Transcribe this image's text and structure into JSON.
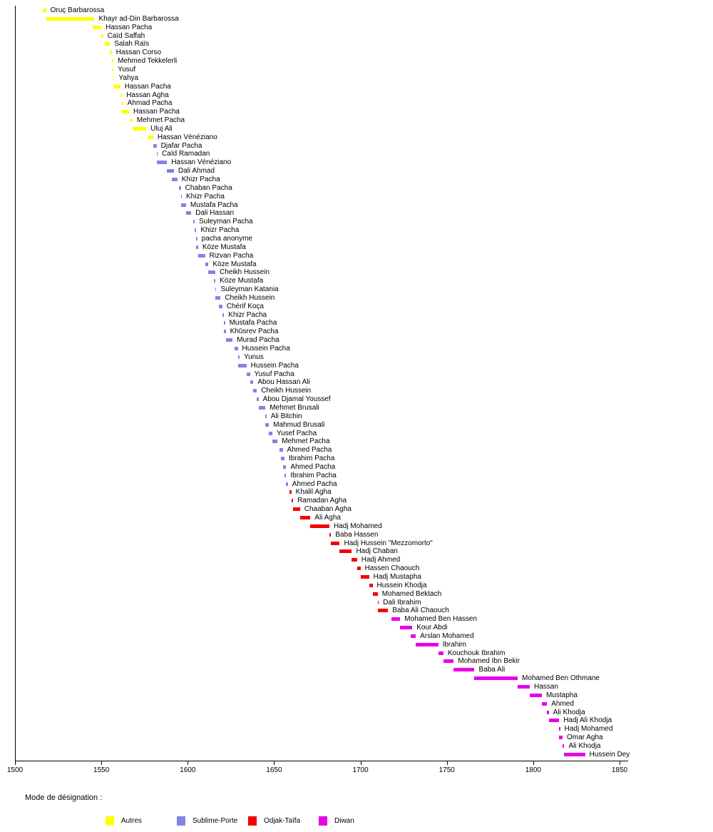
{
  "chart_data": {
    "type": "timeline",
    "title": "",
    "x_axis": {
      "min": 1500,
      "max": 1850,
      "tick_interval": 50,
      "ticks": [
        1500,
        1550,
        1600,
        1650,
        1700,
        1750,
        1800,
        1850
      ]
    },
    "grid": "off",
    "legend": {
      "title": "Mode de désignation :",
      "position": "bottom",
      "items": [
        {
          "label": "Autres",
          "color": "#ffff00"
        },
        {
          "label": "Sublime-Porte",
          "color": "#8383e3"
        },
        {
          "label": "Odjak-Taïfa",
          "color": "#f40000"
        },
        {
          "label": "Diwan",
          "color": "#e800e8"
        }
      ]
    },
    "rulers": [
      {
        "name": "Oruç Barbarossa",
        "start": 1516,
        "end": 1518,
        "group": "Autres"
      },
      {
        "name": "Khayr ad-Din Barbarossa",
        "start": 1518,
        "end": 1546,
        "group": "Autres"
      },
      {
        "name": "Hassan Pacha",
        "start": 1545,
        "end": 1550,
        "group": "Autres"
      },
      {
        "name": "Caïd Saffah",
        "start": 1550,
        "end": 1551,
        "group": "Autres"
      },
      {
        "name": "Salah Raïs",
        "start": 1552,
        "end": 1555,
        "group": "Autres"
      },
      {
        "name": "Hassan Corso",
        "start": 1555,
        "end": 1556,
        "group": "Autres"
      },
      {
        "name": "Mehmed Tekkelerli",
        "start": 1556,
        "end": 1557,
        "group": "Autres"
      },
      {
        "name": "Yusuf",
        "start": 1556,
        "end": 1557,
        "group": "Autres"
      },
      {
        "name": "Yahya",
        "start": 1557,
        "end": 1557,
        "group": "Autres"
      },
      {
        "name": "Hassan Pacha",
        "start": 1557,
        "end": 1561,
        "group": "Autres"
      },
      {
        "name": "Hassan Agha",
        "start": 1561,
        "end": 1562,
        "group": "Autres"
      },
      {
        "name": "Ahmad Pacha",
        "start": 1562,
        "end": 1562,
        "group": "Autres"
      },
      {
        "name": "Hassan Pacha",
        "start": 1562,
        "end": 1566,
        "group": "Autres"
      },
      {
        "name": "Mehmet Pacha",
        "start": 1567,
        "end": 1568,
        "group": "Autres"
      },
      {
        "name": "Uluj Ali",
        "start": 1568,
        "end": 1576,
        "group": "Autres"
      },
      {
        "name": "Hassan Vénéziano",
        "start": 1577,
        "end": 1580,
        "group": "Autres"
      },
      {
        "name": "Djafar Pacha",
        "start": 1580,
        "end": 1582,
        "group": "Sublime-Porte"
      },
      {
        "name": "Caïd Ramadan",
        "start": 1582,
        "end": 1582,
        "group": "Sublime-Porte"
      },
      {
        "name": "Hassan Vénéziano",
        "start": 1582,
        "end": 1588,
        "group": "Sublime-Porte"
      },
      {
        "name": "Dali Ahmad",
        "start": 1588,
        "end": 1592,
        "group": "Sublime-Porte"
      },
      {
        "name": "Khizr Pacha",
        "start": 1591,
        "end": 1594,
        "group": "Sublime-Porte"
      },
      {
        "name": "Chaban Pacha",
        "start": 1595,
        "end": 1596,
        "group": "Sublime-Porte"
      },
      {
        "name": "Khizr Pacha",
        "start": 1596,
        "end": 1596,
        "group": "Sublime-Porte"
      },
      {
        "name": "Mustafa Pacha",
        "start": 1596,
        "end": 1599,
        "group": "Sublime-Porte"
      },
      {
        "name": "Dali Hassan",
        "start": 1599,
        "end": 1602,
        "group": "Sublime-Porte"
      },
      {
        "name": "Suleyman Pacha",
        "start": 1603,
        "end": 1604,
        "group": "Sublime-Porte"
      },
      {
        "name": "Khizr Pacha",
        "start": 1604,
        "end": 1605,
        "group": "Sublime-Porte"
      },
      {
        "name": "pacha anonyme",
        "start": 1605,
        "end": 1605,
        "group": "Sublime-Porte"
      },
      {
        "name": "Köze Mustafa",
        "start": 1605,
        "end": 1606,
        "group": "Sublime-Porte"
      },
      {
        "name": "Rizvan Pacha",
        "start": 1606,
        "end": 1610,
        "group": "Sublime-Porte"
      },
      {
        "name": "Köze Mustafa",
        "start": 1610,
        "end": 1612,
        "group": "Sublime-Porte"
      },
      {
        "name": "Cheikh Hussein",
        "start": 1612,
        "end": 1616,
        "group": "Sublime-Porte"
      },
      {
        "name": "Köze Mustafa",
        "start": 1615,
        "end": 1616,
        "group": "Sublime-Porte"
      },
      {
        "name": "Suleyman Katania",
        "start": 1616,
        "end": 1616,
        "group": "Sublime-Porte"
      },
      {
        "name": "Cheikh Hussein",
        "start": 1616,
        "end": 1619,
        "group": "Sublime-Porte"
      },
      {
        "name": "Chérif Koça",
        "start": 1618,
        "end": 1620,
        "group": "Sublime-Porte"
      },
      {
        "name": "Khizr Pacha",
        "start": 1620,
        "end": 1621,
        "group": "Sublime-Porte"
      },
      {
        "name": "Mustafa Pacha",
        "start": 1621,
        "end": 1621,
        "group": "Sublime-Porte"
      },
      {
        "name": "Khūsrev Pacha",
        "start": 1621,
        "end": 1622,
        "group": "Sublime-Porte"
      },
      {
        "name": "Murad Pacha",
        "start": 1622,
        "end": 1626,
        "group": "Sublime-Porte"
      },
      {
        "name": "Hussein Pacha",
        "start": 1627,
        "end": 1629,
        "group": "Sublime-Porte"
      },
      {
        "name": "Yunus",
        "start": 1629,
        "end": 1630,
        "group": "Sublime-Porte"
      },
      {
        "name": "Hussein Pacha",
        "start": 1629,
        "end": 1634,
        "group": "Sublime-Porte"
      },
      {
        "name": "Yusuf Pacha",
        "start": 1634,
        "end": 1636,
        "group": "Sublime-Porte"
      },
      {
        "name": "Abou Hassan Ali",
        "start": 1636,
        "end": 1638,
        "group": "Sublime-Porte"
      },
      {
        "name": "Cheikh Hussein",
        "start": 1638,
        "end": 1640,
        "group": "Sublime-Porte"
      },
      {
        "name": "Abou Djamal Youssef",
        "start": 1640,
        "end": 1641,
        "group": "Sublime-Porte"
      },
      {
        "name": "Mehmet Brusali",
        "start": 1641,
        "end": 1645,
        "group": "Sublime-Porte"
      },
      {
        "name": "Ali Bitchin",
        "start": 1645,
        "end": 1645,
        "group": "Sublime-Porte"
      },
      {
        "name": "Mahmud Brusali",
        "start": 1645,
        "end": 1647,
        "group": "Sublime-Porte"
      },
      {
        "name": "Yusef Pacha",
        "start": 1647,
        "end": 1649,
        "group": "Sublime-Porte"
      },
      {
        "name": "Mehmet Pacha",
        "start": 1649,
        "end": 1652,
        "group": "Sublime-Porte"
      },
      {
        "name": "Ahmed Pacha",
        "start": 1653,
        "end": 1655,
        "group": "Sublime-Porte"
      },
      {
        "name": "Ibrahim Pacha",
        "start": 1654,
        "end": 1656,
        "group": "Sublime-Porte"
      },
      {
        "name": "Ahmed Pacha",
        "start": 1655,
        "end": 1657,
        "group": "Sublime-Porte"
      },
      {
        "name": "Ibrahim Pacha",
        "start": 1656,
        "end": 1657,
        "group": "Sublime-Porte"
      },
      {
        "name": "Ahmed Pacha",
        "start": 1657,
        "end": 1658,
        "group": "Sublime-Porte"
      },
      {
        "name": "Khalil Agha",
        "start": 1659,
        "end": 1660,
        "group": "Odjak-Taïfa"
      },
      {
        "name": "Ramadan Agha",
        "start": 1660,
        "end": 1661,
        "group": "Odjak-Taïfa"
      },
      {
        "name": "Chaaban Agha",
        "start": 1661,
        "end": 1665,
        "group": "Odjak-Taïfa"
      },
      {
        "name": "Ali Agha",
        "start": 1665,
        "end": 1671,
        "group": "Odjak-Taïfa"
      },
      {
        "name": "Hadj Mohamed",
        "start": 1671,
        "end": 1682,
        "group": "Odjak-Taïfa"
      },
      {
        "name": "Baba Hassen",
        "start": 1682,
        "end": 1683,
        "group": "Odjak-Taïfa"
      },
      {
        "name": "Hadj Hussein \"Mezzomorto\"",
        "start": 1683,
        "end": 1688,
        "group": "Odjak-Taïfa"
      },
      {
        "name": "Hadj Chaban",
        "start": 1688,
        "end": 1695,
        "group": "Odjak-Taïfa"
      },
      {
        "name": "Hadj Ahmed",
        "start": 1695,
        "end": 1698,
        "group": "Odjak-Taïfa"
      },
      {
        "name": "Hassen Chaouch",
        "start": 1698,
        "end": 1700,
        "group": "Odjak-Taïfa"
      },
      {
        "name": "Hadj Mustapha",
        "start": 1700,
        "end": 1705,
        "group": "Odjak-Taïfa"
      },
      {
        "name": "Hussein Khodja",
        "start": 1705,
        "end": 1707,
        "group": "Odjak-Taïfa"
      },
      {
        "name": "Mohamed Bektach",
        "start": 1707,
        "end": 1710,
        "group": "Odjak-Taïfa"
      },
      {
        "name": "Dali Ibrahim",
        "start": 1710,
        "end": 1710,
        "group": "Odjak-Taïfa"
      },
      {
        "name": "Baba Ali Chaouch",
        "start": 1710,
        "end": 1716,
        "group": "Odjak-Taïfa"
      },
      {
        "name": "Mohamed Ben Hassen",
        "start": 1718,
        "end": 1723,
        "group": "Diwan"
      },
      {
        "name": "Kour Abdi",
        "start": 1723,
        "end": 1730,
        "group": "Diwan"
      },
      {
        "name": "Arslan Mohamed",
        "start": 1729,
        "end": 1732,
        "group": "Diwan"
      },
      {
        "name": "Ibrahim",
        "start": 1732,
        "end": 1745,
        "group": "Diwan"
      },
      {
        "name": "Kouchouk Ibrahim",
        "start": 1745,
        "end": 1748,
        "group": "Diwan"
      },
      {
        "name": "Mohamed Ibn Bekir",
        "start": 1748,
        "end": 1754,
        "group": "Diwan"
      },
      {
        "name": "Baba Ali",
        "start": 1754,
        "end": 1766,
        "group": "Diwan"
      },
      {
        "name": "Mohamed Ben Othmane",
        "start": 1766,
        "end": 1791,
        "group": "Diwan"
      },
      {
        "name": "Hassan",
        "start": 1791,
        "end": 1798,
        "group": "Diwan"
      },
      {
        "name": "Mustapha",
        "start": 1798,
        "end": 1805,
        "group": "Diwan"
      },
      {
        "name": "Ahmed",
        "start": 1805,
        "end": 1808,
        "group": "Diwan"
      },
      {
        "name": "Ali Khodja",
        "start": 1808,
        "end": 1809,
        "group": "Diwan"
      },
      {
        "name": "Hadj Ali Khodja",
        "start": 1809,
        "end": 1815,
        "group": "Diwan"
      },
      {
        "name": "Hadj Mohamed",
        "start": 1815,
        "end": 1815,
        "group": "Diwan"
      },
      {
        "name": "Omar Agha",
        "start": 1815,
        "end": 1817,
        "group": "Diwan"
      },
      {
        "name": "Ali Khodja",
        "start": 1817,
        "end": 1818,
        "group": "Diwan"
      },
      {
        "name": "Hussein Dey",
        "start": 1818,
        "end": 1830,
        "group": "Diwan"
      }
    ]
  }
}
